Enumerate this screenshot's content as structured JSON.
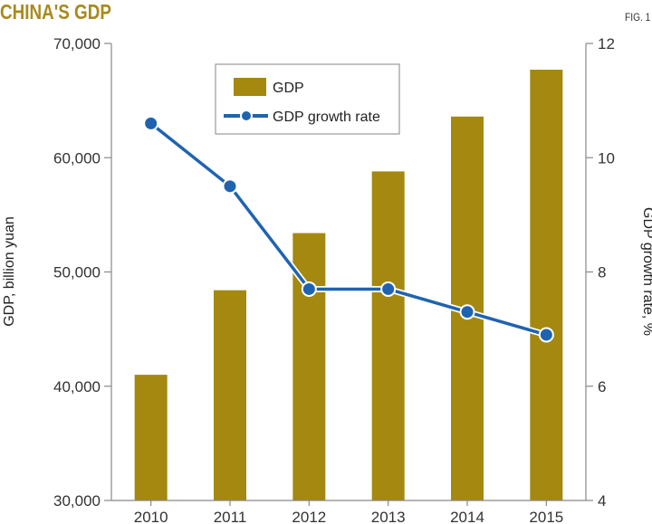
{
  "header": {
    "title": "CHINA'S GDP",
    "fig_label": "FIG. 1"
  },
  "colors": {
    "title": "#a88a1e",
    "bar": "#a48810",
    "line": "#1f63b0",
    "axis": "#888888"
  },
  "chart_data": {
    "type": "bar",
    "categories": [
      "2010",
      "2011",
      "2012",
      "2013",
      "2014",
      "2015"
    ],
    "series": [
      {
        "name": "GDP",
        "type": "bar",
        "axis": "left",
        "values": [
          41000,
          48400,
          53400,
          58800,
          63600,
          67700
        ]
      },
      {
        "name": "GDP growth rate",
        "type": "line",
        "axis": "right",
        "values": [
          10.6,
          9.5,
          7.7,
          7.7,
          7.3,
          6.9
        ]
      }
    ],
    "ylabel": "GDP, billion yuan",
    "y2label": "GDP growth rate, %",
    "ylim": [
      30000,
      70000
    ],
    "y2lim": [
      4,
      12
    ],
    "yticks": [
      "30,000",
      "40,000",
      "50,000",
      "60,000",
      "70,000"
    ],
    "y2ticks": [
      "4",
      "6",
      "8",
      "10",
      "12"
    ],
    "grid": false,
    "legend": "top-center"
  }
}
